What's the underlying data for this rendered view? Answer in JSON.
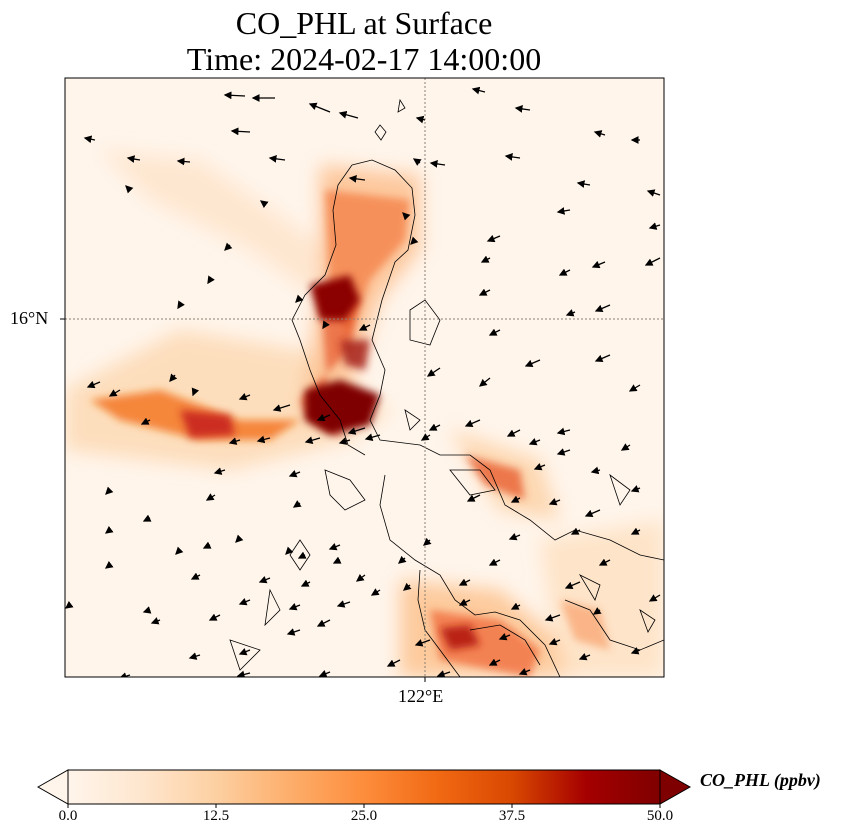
{
  "title": {
    "line1": "CO_PHL at Surface",
    "line2": "Time: 2024-02-17 14:00:00"
  },
  "axes": {
    "lat_label": "16°N",
    "lon_label": "122°E"
  },
  "colorbar": {
    "label": "CO_PHL (ppbv)",
    "min": 0.0,
    "max": 50.0,
    "ticks": [
      "0.0",
      "12.5",
      "25.0",
      "37.5",
      "50.0"
    ],
    "colormap": [
      "#fff5eb",
      "#fee6ce",
      "#fdd0a2",
      "#fdae6b",
      "#fd8d3c",
      "#f16913",
      "#d94801",
      "#a50000",
      "#7f0000"
    ],
    "extend": "both"
  },
  "map": {
    "plume_color_scale": "OrRd",
    "coastline_color": "#000000",
    "gridline_color": "#8a7f73"
  }
}
